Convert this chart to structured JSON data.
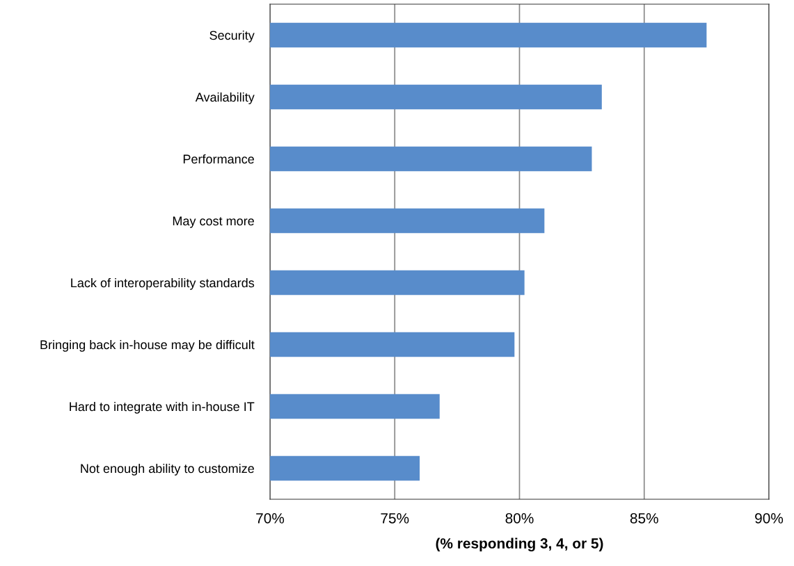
{
  "chart_data": {
    "type": "bar",
    "orientation": "horizontal",
    "xlabel": "(% responding 3, 4, or 5)",
    "categories": [
      "Security",
      "Availability",
      "Performance",
      "May cost more",
      "Lack of interoperability standards",
      "Bringing back in-house may be difficult",
      "Hard to integrate with in-house IT",
      "Not enough ability to customize"
    ],
    "values": [
      87.5,
      83.3,
      82.9,
      81.0,
      80.2,
      79.8,
      76.8,
      76.0
    ],
    "color": "#588ccb",
    "xlim": [
      70,
      90
    ],
    "xticks": [
      {
        "value": 70,
        "label": "70%"
      },
      {
        "value": 75,
        "label": "75%"
      },
      {
        "value": 80,
        "label": "80%"
      },
      {
        "value": 85,
        "label": "85%"
      },
      {
        "value": 90,
        "label": "90%"
      }
    ],
    "grid": "x",
    "legend": false
  }
}
